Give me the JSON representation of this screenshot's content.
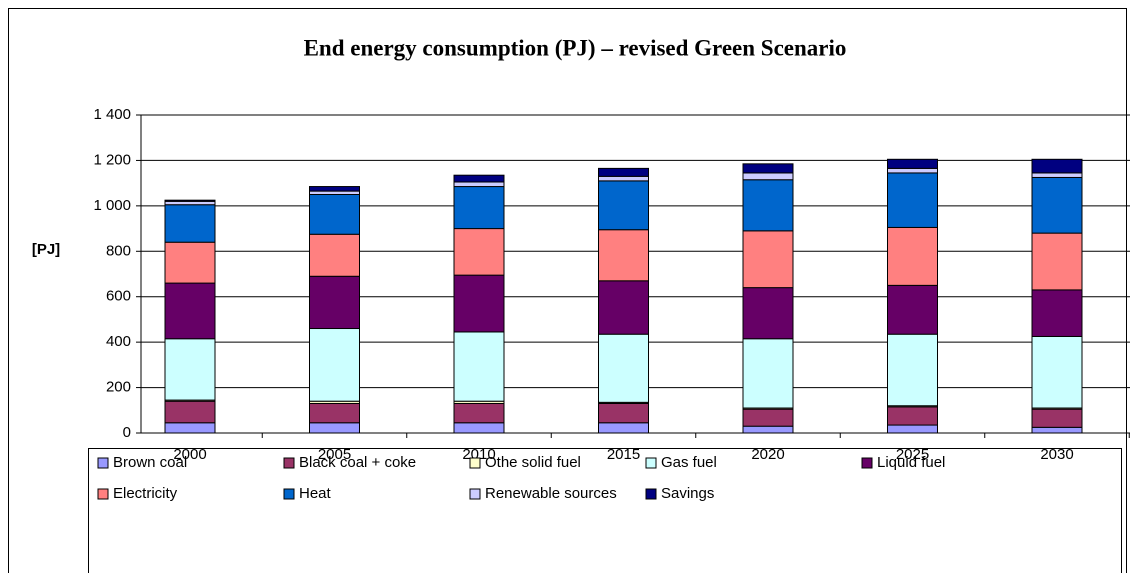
{
  "chart_data": {
    "type": "stacked_bar",
    "title": "End energy consumption (PJ) – revised Green Scenario",
    "y_label": "[PJ]",
    "categories": [
      "2000",
      "2005",
      "2010",
      "2015",
      "2020",
      "2025",
      "2030"
    ],
    "series": [
      {
        "name": "Brown coal",
        "color": "#9999ff",
        "values": [
          45,
          45,
          45,
          45,
          30,
          35,
          25
        ]
      },
      {
        "name": "Black coal + coke",
        "color": "#993366",
        "values": [
          95,
          85,
          85,
          85,
          75,
          80,
          80
        ]
      },
      {
        "name": "Othe solid fuel",
        "color": "#ffffcc",
        "values": [
          5,
          10,
          10,
          5,
          5,
          5,
          5
        ]
      },
      {
        "name": "Gas fuel",
        "color": "#ccffff",
        "values": [
          270,
          320,
          305,
          300,
          305,
          315,
          315
        ]
      },
      {
        "name": "Liquid fuel",
        "color": "#660066",
        "values": [
          245,
          230,
          250,
          235,
          225,
          215,
          205
        ]
      },
      {
        "name": "Electricity",
        "color": "#ff8080",
        "values": [
          180,
          185,
          205,
          225,
          250,
          255,
          250
        ]
      },
      {
        "name": "Heat",
        "color": "#0066cc",
        "values": [
          165,
          175,
          185,
          215,
          225,
          240,
          245
        ]
      },
      {
        "name": "Renewable sources",
        "color": "#ccccff",
        "values": [
          15,
          15,
          20,
          20,
          30,
          20,
          20
        ]
      },
      {
        "name": "Savings",
        "color": "#000080",
        "values": [
          5,
          20,
          30,
          35,
          40,
          40,
          60
        ]
      }
    ],
    "ylim": [
      0,
      1400
    ],
    "yticks": [
      0,
      200,
      400,
      600,
      800,
      {
        "value": 1000,
        "label": "1 000"
      },
      {
        "value": 1200,
        "label": "1 200"
      },
      {
        "value": 1400,
        "label": "1 400"
      }
    ],
    "grid": true
  }
}
